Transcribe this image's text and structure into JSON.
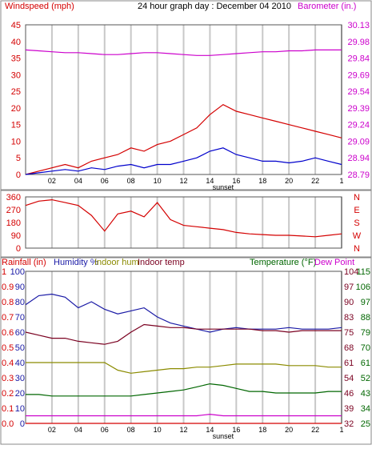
{
  "colors": {
    "windspeed": "#d40000",
    "barometer": "#cc00cc",
    "wind_avg": "#0000cc",
    "direction": "#d40000",
    "rain": "#d40000",
    "humidity": "#1a1aa6",
    "indoor_hum": "#8b8b00",
    "indoor_temp": "#7a0020",
    "temperature": "#006600",
    "dew_point": "#cc00cc",
    "grid": "#c8c8c8"
  },
  "chart_data": [
    {
      "type": "line",
      "title": "24 hour graph day : December 04 2010",
      "ylabel_left": "Windspeed (mph)",
      "ylabel_right": "Barometer (in.)",
      "ylim_left": [
        0,
        45
      ],
      "yticks_left": [
        "0",
        "5",
        "10",
        "15",
        "20",
        "25",
        "30",
        "35",
        "40",
        "45"
      ],
      "ylim_right": [
        28.79,
        30.13
      ],
      "yticks_right": [
        "28.79",
        "28.94",
        "29.09",
        "29.24",
        "29.39",
        "29.54",
        "29.69",
        "29.84",
        "29.98",
        "30.13"
      ],
      "x": [
        0,
        1,
        2,
        3,
        4,
        5,
        6,
        7,
        8,
        9,
        10,
        11,
        12,
        13,
        14,
        15,
        16,
        17,
        18,
        19,
        20,
        21,
        22,
        23,
        24
      ],
      "xticks": [
        "02",
        "04",
        "06",
        "08",
        "10",
        "12",
        "14",
        "16",
        "18",
        "20",
        "22",
        "1"
      ],
      "xnote": "sunset",
      "series": [
        {
          "name": "Windspeed (mph)",
          "axis": "left",
          "values": [
            0,
            1,
            2,
            3,
            2,
            4,
            5,
            6,
            8,
            7,
            9,
            10,
            12,
            14,
            18,
            21,
            19,
            18,
            17,
            16,
            15,
            14,
            13,
            12,
            11
          ]
        },
        {
          "name": "Wind average",
          "axis": "left",
          "values": [
            0,
            0.5,
            1,
            1.5,
            1,
            2,
            1.5,
            2.5,
            3,
            2,
            3,
            3,
            4,
            5,
            7,
            8,
            6,
            5,
            4,
            4,
            3.5,
            4,
            5,
            4,
            3
          ]
        },
        {
          "name": "Barometer (in.)",
          "axis": "right",
          "values": [
            30.13,
            30.12,
            30.11,
            30.1,
            30.1,
            30.09,
            30.08,
            30.08,
            30.09,
            30.1,
            30.1,
            30.09,
            30.08,
            30.07,
            30.07,
            30.08,
            30.09,
            30.1,
            30.11,
            30.11,
            30.12,
            30.12,
            30.13,
            30.13,
            30.13
          ]
        }
      ]
    },
    {
      "type": "line",
      "ylim": [
        0,
        360
      ],
      "yticks_left": [
        "0",
        "90",
        "180",
        "270",
        "360"
      ],
      "yticks_right": [
        "N",
        "E",
        "S",
        "W",
        "N"
      ],
      "series": [
        {
          "name": "Wind direction",
          "values": [
            300,
            330,
            340,
            320,
            300,
            230,
            120,
            240,
            260,
            220,
            320,
            200,
            160,
            150,
            140,
            130,
            110,
            100,
            95,
            90,
            90,
            85,
            80,
            90,
            100
          ]
        }
      ]
    },
    {
      "type": "line",
      "ylabel_left_rain": "Rainfall (in)",
      "ylabel_left_hum": "Humidity %",
      "legend_indoor_hum": "Indoor hum",
      "legend_indoor_temp": "Indoor temp",
      "ylabel_right_temp": "Temperature (°F)",
      "ylabel_right_dew": "Dew Point",
      "yticks_rain": [
        "0.0",
        "0.1",
        "0.2",
        "0.3",
        "0.4",
        "0.5",
        "0.6",
        "0.7",
        "0.8",
        "0.9",
        "1"
      ],
      "yticks_hum": [
        "0",
        "10",
        "20",
        "30",
        "40",
        "50",
        "60",
        "70",
        "80",
        "90",
        "100"
      ],
      "yticks_temp_a": [
        "32",
        "39",
        "46",
        "54",
        "61",
        "68",
        "75",
        "83",
        "90",
        "97",
        "104"
      ],
      "yticks_temp_b": [
        "25",
        "34",
        "43",
        "52",
        "61",
        "70",
        "79",
        "88",
        "97",
        "106",
        "115"
      ],
      "series": [
        {
          "name": "Humidity %",
          "values": [
            78,
            84,
            85,
            83,
            76,
            80,
            75,
            72,
            74,
            76,
            70,
            66,
            64,
            62,
            60,
            62,
            63,
            62,
            62,
            62,
            63,
            62,
            62,
            62,
            63
          ]
        },
        {
          "name": "Indoor temp",
          "values": [
            60,
            58,
            56,
            56,
            54,
            53,
            52,
            54,
            60,
            65,
            64,
            63,
            63,
            62,
            62,
            62,
            62,
            62,
            61,
            61,
            60,
            61,
            61,
            61,
            61
          ]
        },
        {
          "name": "Indoor hum",
          "values": [
            40,
            40,
            40,
            40,
            40,
            40,
            40,
            35,
            33,
            34,
            35,
            36,
            36,
            37,
            37,
            38,
            39,
            39,
            39,
            39,
            38,
            38,
            38,
            37,
            37
          ]
        },
        {
          "name": "Temperature",
          "values": [
            19,
            19,
            18,
            18,
            18,
            18,
            18,
            18,
            18,
            19,
            20,
            21,
            22,
            24,
            26,
            25,
            23,
            21,
            21,
            20,
            20,
            20,
            20,
            21,
            21
          ]
        },
        {
          "name": "Dew Point",
          "values": [
            5,
            5,
            5,
            5,
            5,
            5,
            5,
            5,
            5,
            5,
            5,
            5,
            5,
            5,
            6,
            5,
            5,
            5,
            5,
            5,
            5,
            5,
            5,
            5,
            5
          ]
        },
        {
          "name": "Rainfall (in)",
          "values": [
            0,
            0,
            0,
            0,
            0,
            0,
            0,
            0,
            0,
            0,
            0,
            0,
            0,
            0,
            0,
            0,
            0,
            0,
            0,
            0,
            0,
            0,
            0,
            0,
            0
          ]
        }
      ]
    }
  ]
}
